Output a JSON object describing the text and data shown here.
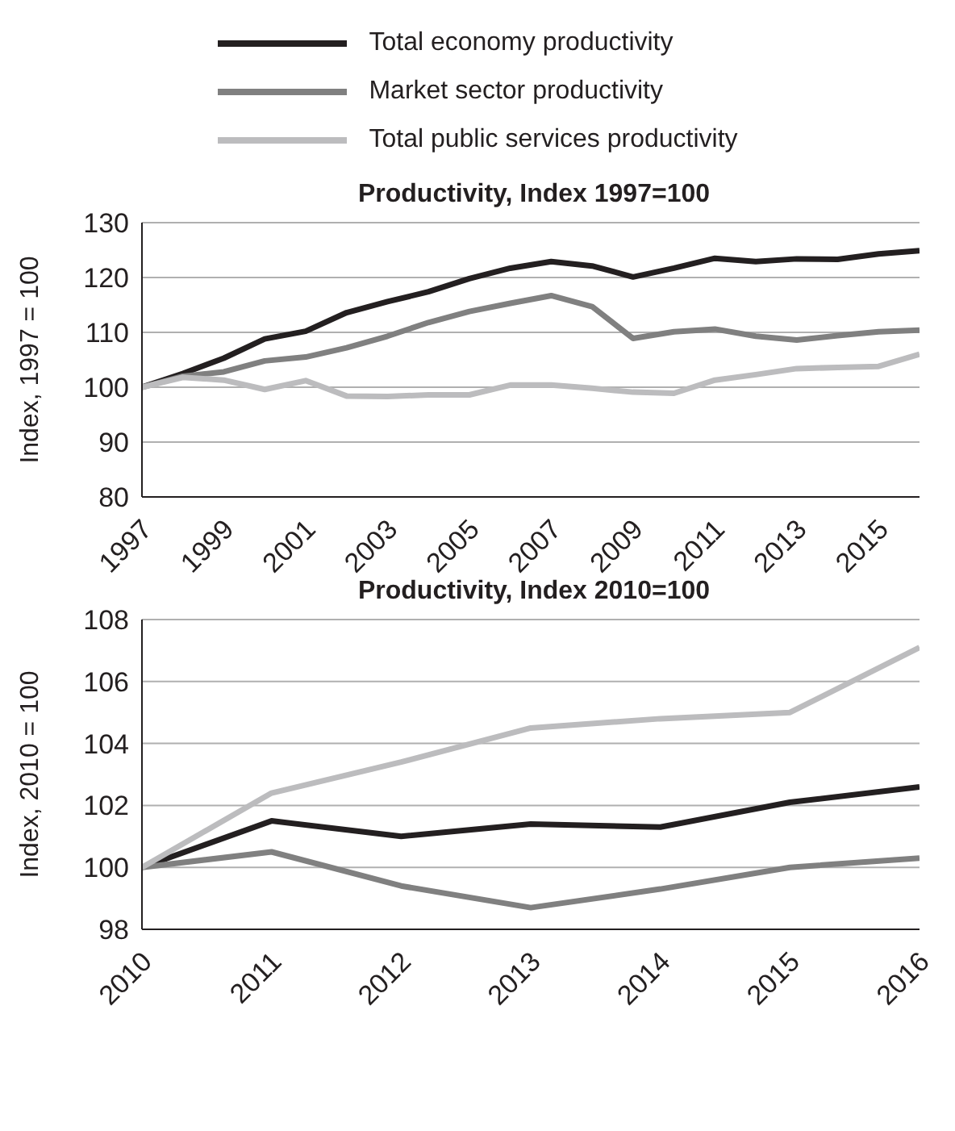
{
  "chart_data": [
    {
      "type": "line",
      "title": "Productivity, Index 1997=100",
      "ylabel": "Index, 1997 = 100",
      "x": [
        1997,
        1998,
        1999,
        2000,
        2001,
        2002,
        2003,
        2004,
        2005,
        2006,
        2007,
        2008,
        2009,
        2010,
        2011,
        2012,
        2013,
        2014,
        2015,
        2016
      ],
      "xlim": [
        1997,
        2016
      ],
      "xticks": [
        1997,
        1999,
        2001,
        2003,
        2005,
        2007,
        2009,
        2011,
        2013,
        2015
      ],
      "ylim": [
        80,
        130
      ],
      "yticks": [
        80,
        90,
        100,
        110,
        120,
        130
      ],
      "grid": "y",
      "legend": "top",
      "marker": "none",
      "line_style": "solid",
      "series": [
        {
          "name": "Total economy productivity",
          "color": "#231f20",
          "values": [
            100,
            102.5,
            105.3,
            108.8,
            110.2,
            113.6,
            115.6,
            117.4,
            119.8,
            121.7,
            122.9,
            122.1,
            120.1,
            121.7,
            123.5,
            122.9,
            123.4,
            123.3,
            124.3,
            124.9
          ]
        },
        {
          "name": "Market sector productivity",
          "color": "#808080",
          "values": [
            100,
            102,
            102.8,
            104.8,
            105.5,
            107.2,
            109.3,
            111.8,
            113.8,
            115.3,
            116.7,
            114.7,
            108.9,
            110.1,
            110.6,
            109.3,
            108.6,
            109.4,
            110.1,
            110.4
          ]
        },
        {
          "name": "Total public services productivity",
          "color": "#bcbcbe",
          "values": [
            100,
            101.8,
            101.3,
            99.6,
            101.2,
            98.4,
            98.3,
            98.6,
            98.6,
            100.4,
            100.4,
            99.8,
            99.1,
            98.9,
            101.3,
            102.3,
            103.4,
            103.6,
            103.8,
            106.0
          ]
        }
      ]
    },
    {
      "type": "line",
      "title": "Productivity, Index 2010=100",
      "ylabel": "Index, 2010 = 100",
      "categories": [
        "2010",
        "2011",
        "2012",
        "2013",
        "2014",
        "2015",
        "2016"
      ],
      "ylim": [
        98,
        108
      ],
      "yticks": [
        98,
        100,
        102,
        104,
        106,
        108
      ],
      "grid": "y",
      "marker": "none",
      "line_style": "solid",
      "series": [
        {
          "color": "#231f20",
          "values": [
            100,
            101.5,
            101,
            101.4,
            101.3,
            102.1,
            102.6
          ]
        },
        {
          "color": "#808080",
          "values": [
            100,
            100.5,
            99.4,
            98.7,
            99.3,
            100,
            100.3
          ]
        },
        {
          "color": "#bcbcbe",
          "values": [
            100,
            102.4,
            103.4,
            104.5,
            104.8,
            105,
            107.1
          ]
        }
      ]
    }
  ]
}
